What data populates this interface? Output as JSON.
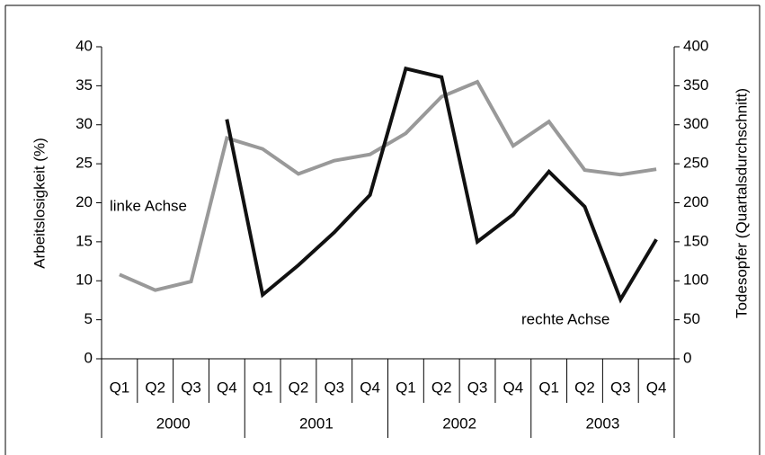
{
  "chart_data": {
    "type": "line",
    "categories": [
      "Q1",
      "Q2",
      "Q3",
      "Q4",
      "Q1",
      "Q2",
      "Q3",
      "Q4",
      "Q1",
      "Q2",
      "Q3",
      "Q4",
      "Q1",
      "Q2",
      "Q3",
      "Q4"
    ],
    "category_groups": [
      "2000",
      "2001",
      "2002",
      "2003"
    ],
    "y_label": "Arbeitslosigkeit (%)",
    "y2_label": "Todesopfer (Quartalsdurchschnitt)",
    "ylim": [
      0,
      40
    ],
    "yticks": [
      0,
      5,
      10,
      15,
      20,
      25,
      30,
      35,
      40
    ],
    "y2lim": [
      0,
      400
    ],
    "y2ticks": [
      0,
      50,
      100,
      150,
      200,
      250,
      300,
      350,
      400
    ],
    "series": [
      {
        "name": "Arbeitslosigkeit",
        "color": "#999999",
        "axis": "y",
        "values": [
          10.8,
          8.8,
          9.9,
          28.3,
          26.9,
          23.7,
          25.4,
          26.2,
          28.9,
          33.6,
          35.5,
          27.3,
          30.4,
          24.2,
          23.6,
          24.3
        ]
      },
      {
        "name": "Todesopfer",
        "color": "#111111",
        "axis": "y2",
        "values": [
          null,
          null,
          null,
          307,
          82,
          120,
          162,
          210,
          372,
          361,
          150,
          185,
          240,
          195,
          76,
          153
        ]
      }
    ],
    "annotations": [
      "linke Achse",
      "rechte Achse"
    ]
  }
}
